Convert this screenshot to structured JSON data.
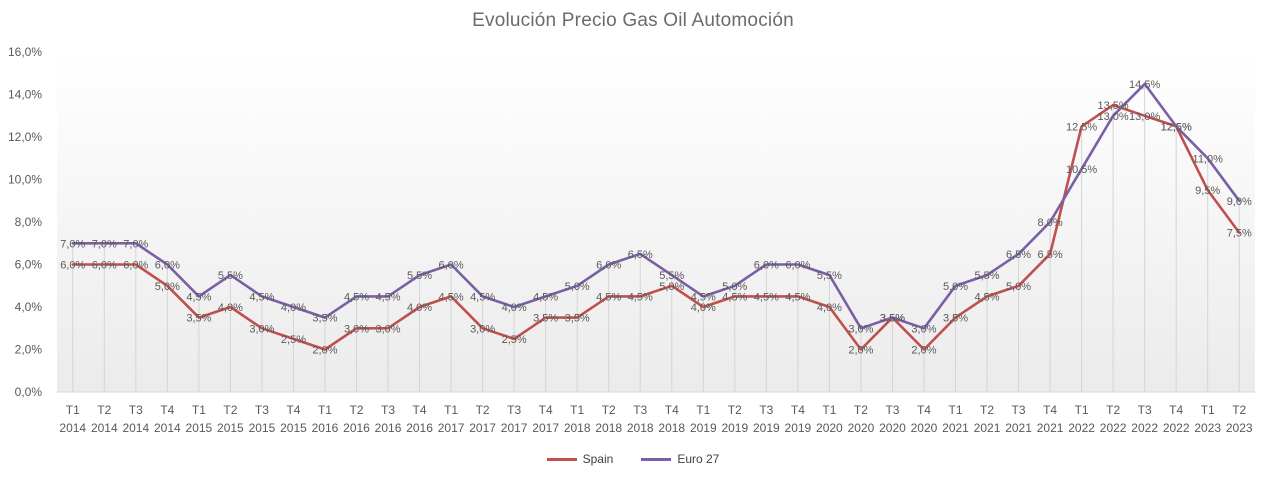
{
  "chart_data": {
    "type": "line",
    "title": "Evolución Precio Gas Oil Automoción",
    "xlabel": "",
    "ylabel": "",
    "ylim": [
      0,
      16
    ],
    "yticks": [
      "0,0%",
      "2,0%",
      "4,0%",
      "6,0%",
      "8,0%",
      "10,0%",
      "12,0%",
      "14,0%",
      "16,0%"
    ],
    "grid": false,
    "legend_position": "bottom",
    "categories": [
      [
        "T1",
        "2014"
      ],
      [
        "T2",
        "2014"
      ],
      [
        "T3",
        "2014"
      ],
      [
        "T4",
        "2014"
      ],
      [
        "T1",
        "2015"
      ],
      [
        "T2",
        "2015"
      ],
      [
        "T3",
        "2015"
      ],
      [
        "T4",
        "2015"
      ],
      [
        "T1",
        "2016"
      ],
      [
        "T2",
        "2016"
      ],
      [
        "T3",
        "2016"
      ],
      [
        "T4",
        "2016"
      ],
      [
        "T1",
        "2017"
      ],
      [
        "T2",
        "2017"
      ],
      [
        "T3",
        "2017"
      ],
      [
        "T4",
        "2017"
      ],
      [
        "T1",
        "2018"
      ],
      [
        "T2",
        "2018"
      ],
      [
        "T3",
        "2018"
      ],
      [
        "T4",
        "2018"
      ],
      [
        "T1",
        "2019"
      ],
      [
        "T2",
        "2019"
      ],
      [
        "T3",
        "2019"
      ],
      [
        "T4",
        "2019"
      ],
      [
        "T1",
        "2020"
      ],
      [
        "T2",
        "2020"
      ],
      [
        "T3",
        "2020"
      ],
      [
        "T4",
        "2020"
      ],
      [
        "T1",
        "2021"
      ],
      [
        "T2",
        "2021"
      ],
      [
        "T3",
        "2021"
      ],
      [
        "T4",
        "2021"
      ],
      [
        "T1",
        "2022"
      ],
      [
        "T2",
        "2022"
      ],
      [
        "T3",
        "2022"
      ],
      [
        "T4",
        "2022"
      ],
      [
        "T1",
        "2023"
      ],
      [
        "T2",
        "2023"
      ]
    ],
    "series": [
      {
        "name": "Spain",
        "color": "#c0504d",
        "values": [
          6.0,
          6.0,
          6.0,
          5.0,
          3.5,
          4.0,
          3.0,
          2.5,
          2.0,
          3.0,
          3.0,
          4.0,
          4.5,
          3.0,
          2.5,
          3.5,
          3.5,
          4.5,
          4.5,
          5.0,
          4.0,
          4.5,
          4.5,
          4.5,
          4.0,
          2.0,
          3.5,
          2.0,
          3.5,
          4.5,
          5.0,
          6.5,
          12.5,
          13.5,
          13.0,
          12.5,
          9.5,
          7.5
        ],
        "labels": [
          "6,0%",
          "6,0%",
          "6,0%",
          "5,0%",
          "3,5%",
          "4,0%",
          "3,0%",
          "2,5%",
          "2,0%",
          "3,0%",
          "3,0%",
          "4,0%",
          "4,5%",
          "3,0%",
          "2,5%",
          "3,5%",
          "3,5%",
          "4,5%",
          "4,5%",
          "5,0%",
          "4,0%",
          "4,5%",
          "4,5%",
          "4,5%",
          "4,0%",
          "2,0%",
          "3,5%",
          "2,0%",
          "3,5%",
          "4,5%",
          "5,0%",
          "6,5%",
          "12,5%",
          "13,5%",
          "13,0%",
          "12,5%",
          "9,5%",
          "7,5%"
        ]
      },
      {
        "name": "Euro 27",
        "color": "#7b5fa6",
        "values": [
          7.0,
          7.0,
          7.0,
          6.0,
          4.5,
          5.5,
          4.5,
          4.0,
          3.5,
          4.5,
          4.5,
          5.5,
          6.0,
          4.5,
          4.0,
          4.5,
          5.0,
          6.0,
          6.5,
          5.5,
          4.5,
          5.0,
          6.0,
          6.0,
          5.5,
          3.0,
          3.5,
          3.0,
          5.0,
          5.5,
          6.5,
          8.0,
          10.5,
          13.0,
          14.5,
          12.5,
          11.0,
          9.0
        ],
        "labels": [
          "7,0%",
          "7,0%",
          "7,0%",
          "6,0%",
          "4,5%",
          "5,5%",
          "4,5%",
          "4,0%",
          "3,5%",
          "4,5%",
          "4,5%",
          "5,5%",
          "6,0%",
          "4,5%",
          "4,0%",
          "4,5%",
          "5,0%",
          "6,0%",
          "6,5%",
          "5,5%",
          "4,5%",
          "5,0%",
          "6,0%",
          "6,0%",
          "5,5%",
          "3,0%",
          "3,5%",
          "3,0%",
          "5,0%",
          "5,5%",
          "6,5%",
          "8,0%",
          "10,5%",
          "13,0%",
          "14,5%",
          "12,5%",
          "11,0%",
          "9,0%"
        ]
      }
    ]
  }
}
